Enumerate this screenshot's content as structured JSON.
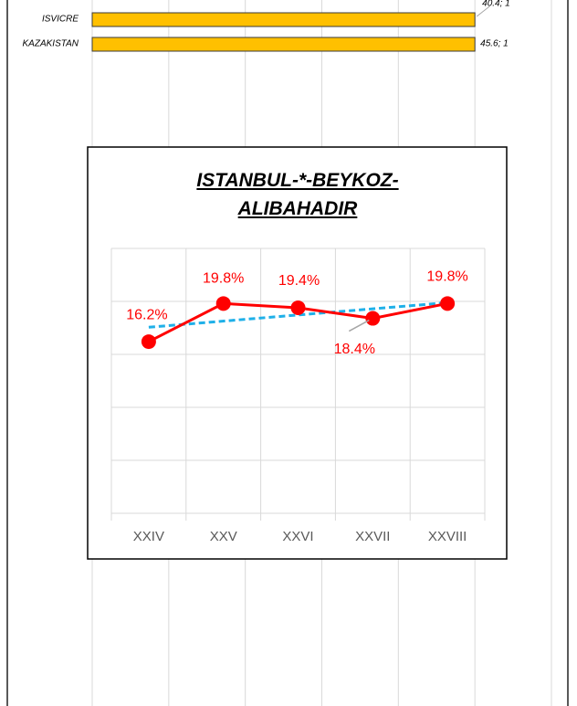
{
  "chart_data": [
    {
      "type": "hbar",
      "categories": [
        "ISVICRE",
        "KAZAKISTAN"
      ],
      "values": [
        1,
        1
      ],
      "value_labels": [
        "40.4; 1",
        "45.6; 1"
      ],
      "color": "#ffc000",
      "xlim": [
        0,
        1.2
      ],
      "xticks": [
        0,
        0.2,
        0.4,
        0.6,
        0.8,
        1,
        1.2
      ],
      "grid": true
    },
    {
      "type": "line",
      "title": "ISTANBUL-*-BEYKOZ-ALIBAHADIR",
      "categories": [
        "XXIV",
        "XXV",
        "XXVI",
        "XXVII",
        "XXVIII"
      ],
      "values": [
        16.2,
        19.8,
        19.4,
        18.4,
        19.8
      ],
      "value_labels": [
        "16.2%",
        "19.8%",
        "19.4%",
        "18.4%",
        "19.8%"
      ],
      "color": "#ff0000",
      "trendline": true,
      "trendline_color": "#1fb0e8",
      "ylim": [
        0,
        25
      ],
      "yticks": [
        0,
        5,
        10,
        15,
        20,
        25
      ],
      "grid": true
    }
  ]
}
